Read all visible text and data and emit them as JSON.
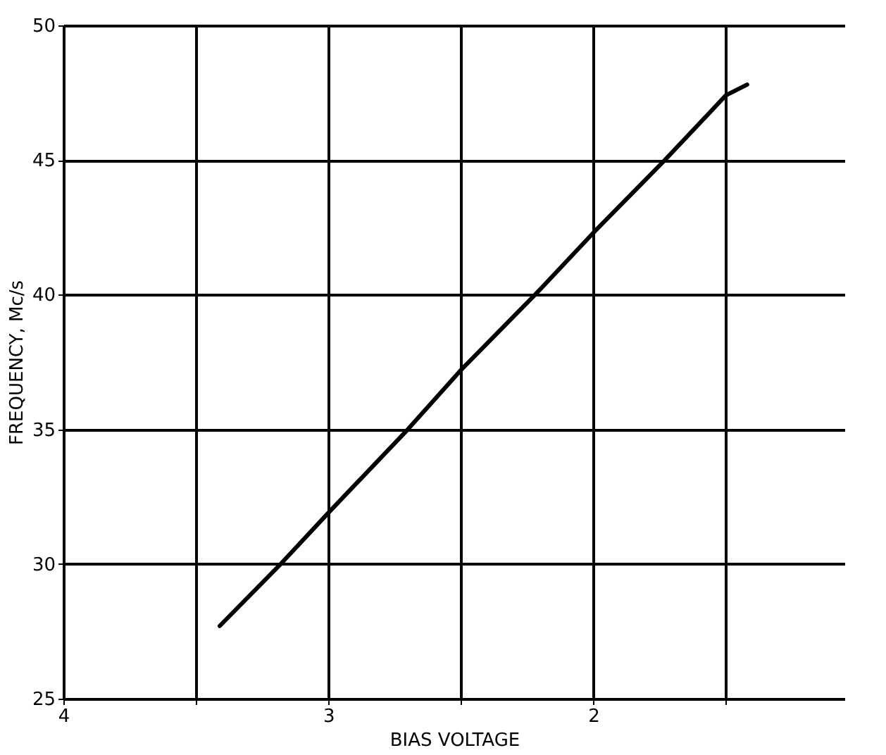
{
  "chart_data": {
    "type": "line",
    "xlabel": "BIAS VOLTAGE",
    "ylabel": "FREQUENCY, Mc/s",
    "x": [
      3.41,
      3.18,
      3.0,
      2.7,
      2.5,
      2.22,
      2.0,
      1.73,
      1.5,
      1.42
    ],
    "series": [
      {
        "color": "#000000",
        "values": [
          27.7,
          30.0,
          31.9,
          35.0,
          37.2,
          40.0,
          42.3,
          45.0,
          47.4,
          47.8
        ]
      }
    ],
    "xlim": [
      4,
      1.05
    ],
    "ylim": [
      25,
      50
    ],
    "xticks": [
      4,
      {
        "value": 3.5,
        "label": null
      },
      3,
      {
        "value": 2.5,
        "label": null
      },
      2,
      {
        "value": 1.5,
        "label": null
      }
    ],
    "yticks": [
      25,
      30,
      35,
      40,
      45,
      50
    ],
    "grid": true,
    "marker": "none",
    "line_style": "solid"
  }
}
